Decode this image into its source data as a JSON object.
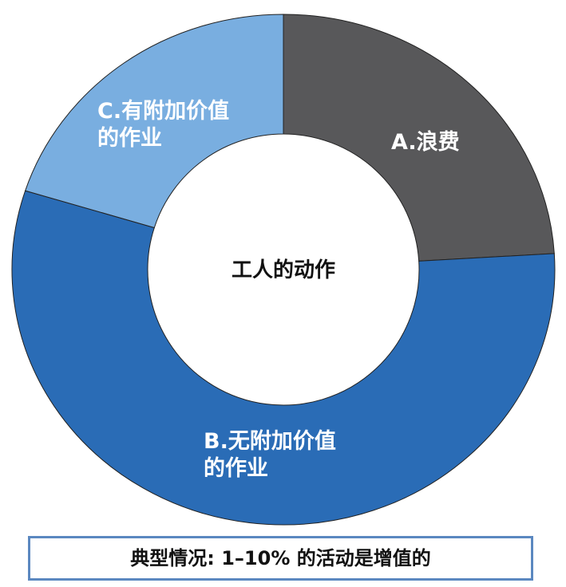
{
  "chart_data": {
    "type": "pie",
    "donut": true,
    "center_label": "工人的动作",
    "categories": [
      "A.浪费",
      "B.无附加价值的作业",
      "C.有附加价值的作业"
    ],
    "values": [
      24,
      56,
      20
    ],
    "colors": [
      "#58585a",
      "#2a6cb6",
      "#79aee0"
    ],
    "labels": {
      "a": [
        "A.浪费"
      ],
      "b": [
        "B.无附加价值",
        "的作业"
      ],
      "c": [
        "C.有附加价值",
        "的作业"
      ]
    },
    "start": "top",
    "direction": "clockwise"
  },
  "caption": "典型情况: 1–10% 的活动是增值的"
}
